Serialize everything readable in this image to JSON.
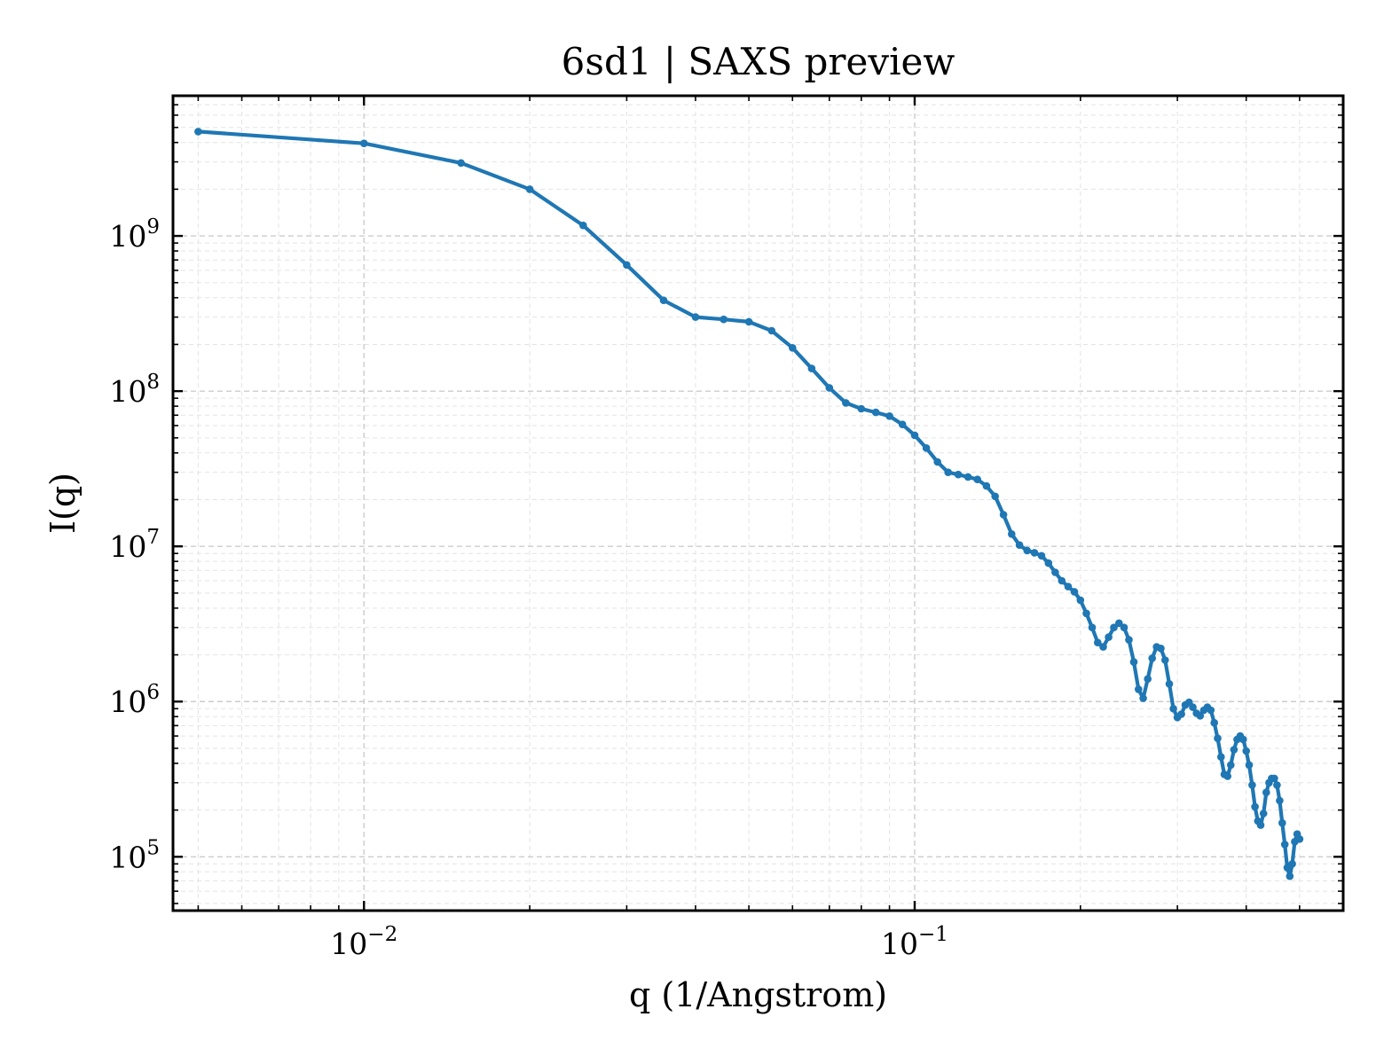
{
  "chart_data": {
    "type": "line",
    "title": "6sd1 | SAXS preview",
    "xlabel": "q (1/Angstrom)",
    "ylabel": "I(q)",
    "xscale": "log",
    "yscale": "log",
    "xlim": [
      0.0045,
      0.6
    ],
    "ylim": [
      45000,
      8000000000
    ],
    "x_ticks": [
      {
        "base": "10",
        "exp": "−2",
        "value": 0.01
      },
      {
        "base": "10",
        "exp": "−1",
        "value": 0.1
      }
    ],
    "y_ticks": [
      {
        "base": "10",
        "exp": "5",
        "value": 100000
      },
      {
        "base": "10",
        "exp": "6",
        "value": 1000000
      },
      {
        "base": "10",
        "exp": "7",
        "value": 10000000
      },
      {
        "base": "10",
        "exp": "8",
        "value": 100000000
      },
      {
        "base": "10",
        "exp": "9",
        "value": 1000000000
      }
    ],
    "grid": true,
    "colors": {
      "series": "#1f77b4"
    },
    "series": [
      {
        "x": [
          0.005,
          0.01,
          0.015,
          0.02,
          0.025,
          0.03,
          0.035,
          0.04,
          0.045,
          0.05,
          0.055,
          0.06,
          0.065,
          0.07,
          0.075,
          0.08,
          0.085,
          0.09,
          0.095,
          0.1,
          0.105,
          0.11,
          0.115,
          0.12,
          0.125,
          0.13,
          0.135,
          0.14,
          0.145,
          0.15,
          0.155,
          0.16,
          0.165,
          0.17,
          0.175,
          0.18,
          0.185,
          0.19,
          0.195,
          0.2,
          0.205,
          0.21,
          0.215,
          0.22,
          0.225,
          0.23,
          0.235,
          0.24,
          0.245,
          0.25,
          0.255,
          0.26,
          0.265,
          0.27,
          0.275,
          0.28,
          0.285,
          0.29,
          0.295,
          0.3,
          0.305,
          0.31,
          0.315,
          0.32,
          0.325,
          0.33,
          0.335,
          0.34,
          0.345,
          0.35,
          0.355,
          0.36,
          0.365,
          0.37,
          0.375,
          0.38,
          0.385,
          0.39,
          0.395,
          0.4,
          0.405,
          0.41,
          0.415,
          0.42,
          0.425,
          0.43,
          0.435,
          0.44,
          0.445,
          0.45,
          0.455,
          0.46,
          0.465,
          0.47,
          0.475,
          0.48,
          0.485,
          0.49,
          0.495,
          0.5
        ],
        "y": [
          4700000000.0,
          3950000000.0,
          2950000000.0,
          2000000000.0,
          1170000000.0,
          650000000.0,
          385000000.0,
          300000000.0,
          290000000.0,
          280000000.0,
          245000000.0,
          190000000.0,
          140000000.0,
          105000000.0,
          84000000.0,
          77000000.0,
          73000000.0,
          69000000.0,
          61000000.0,
          52000000.0,
          43000000.0,
          35000000.0,
          30000000.0,
          29000000.0,
          28000000.0,
          27000000.0,
          24500000.0,
          21000000.0,
          16000000.0,
          12000000.0,
          10200000.0,
          9400000.0,
          9100000.0,
          8700000.0,
          7800000.0,
          6800000.0,
          6000000.0,
          5500000.0,
          5100000.0,
          4500000.0,
          3700000.0,
          3000000.0,
          2400000.0,
          2250000.0,
          2600000.0,
          3000000.0,
          3200000.0,
          3000000.0,
          2500000.0,
          1800000.0,
          1200000.0,
          1050000.0,
          1400000.0,
          1900000.0,
          2250000.0,
          2200000.0,
          1850000.0,
          1300000.0,
          900000.0,
          790000.0,
          830000.0,
          950000.0,
          990000.0,
          920000.0,
          840000.0,
          810000.0,
          880000.0,
          920000.0,
          880000.0,
          730000.0,
          580000.0,
          440000.0,
          340000.0,
          330000.0,
          390000.0,
          490000.0,
          570000.0,
          600000.0,
          570000.0,
          480000.0,
          390000.0,
          290000.0,
          210000.0,
          170000.0,
          160000.0,
          190000.0,
          260000.0,
          300000.0,
          320000.0,
          320000.0,
          290000.0,
          230000.0,
          165000.0,
          120000.0,
          85000.0,
          75000.0,
          90000.0,
          125000.0,
          140000.0,
          130000.0
        ]
      }
    ]
  }
}
